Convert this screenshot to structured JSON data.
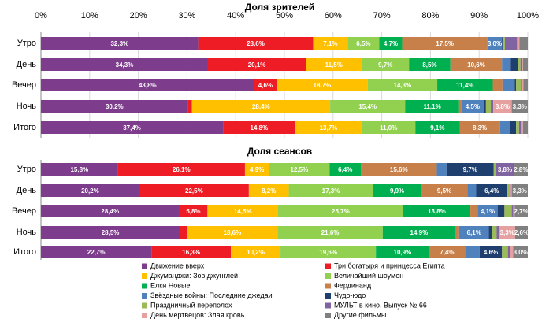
{
  "chart_data": [
    {
      "type": "stacked-bar-horizontal",
      "title": "Доля зрителей",
      "categories": [
        "Утро",
        "День",
        "Вечер",
        "Ночь",
        "Итого"
      ],
      "xlim": [
        0,
        100
      ],
      "xticks": [
        {
          "value": 0,
          "label": "0%"
        },
        {
          "value": 10,
          "label": "10%"
        },
        {
          "value": 20,
          "label": "20%"
        },
        {
          "value": 30,
          "label": "30%"
        },
        {
          "value": 40,
          "label": "40%"
        },
        {
          "value": 50,
          "label": "50%"
        },
        {
          "value": 60,
          "label": "60%"
        },
        {
          "value": 70,
          "label": "70%"
        },
        {
          "value": 80,
          "label": "80%"
        },
        {
          "value": 90,
          "label": "90%"
        },
        {
          "value": 100,
          "label": "100%"
        }
      ],
      "grid": true,
      "series": [
        {
          "name": "Движение вверх",
          "color": "#7d3c8c",
          "values": [
            32.3,
            34.3,
            43.8,
            30.2,
            37.4
          ],
          "value_labels": [
            "32,3%",
            "34,3%",
            "43,8%",
            "30,2%",
            "37,4%"
          ]
        },
        {
          "name": "Три богатыря и принцесса Египта",
          "color": "#ee1c25",
          "values": [
            23.6,
            20.1,
            4.6,
            0.8,
            14.8
          ],
          "value_labels": [
            "23,6%",
            "20,1%",
            "4,6%",
            null,
            "14,8%"
          ]
        },
        {
          "name": "Джуманджи: Зов джунглей",
          "color": "#ffc000",
          "values": [
            7.1,
            11.5,
            18.7,
            28.4,
            13.7
          ],
          "value_labels": [
            "7,1%",
            "11,5%",
            "18,7%",
            "28,4%",
            "13,7%"
          ]
        },
        {
          "name": "Величайший шоумен",
          "color": "#92d050",
          "values": [
            6.5,
            9.7,
            14.3,
            15.4,
            11.0
          ],
          "value_labels": [
            "6,5%",
            "9,7%",
            "14,3%",
            "15,4%",
            "11,0%"
          ]
        },
        {
          "name": "Елки Новые",
          "color": "#00b050",
          "values": [
            4.7,
            8.5,
            11.4,
            11.1,
            9.1
          ],
          "value_labels": [
            "4,7%",
            "8,5%",
            "11,4%",
            "11,1%",
            "9,1%"
          ]
        },
        {
          "name": "Фердинанд",
          "color": "#c8804a",
          "values": [
            17.5,
            10.6,
            2.0,
            0.5,
            8.3
          ],
          "value_labels": [
            "17,5%",
            "10,6%",
            null,
            null,
            "8,3%"
          ]
        },
        {
          "name": "Звёздные войны: Последние джедаи",
          "color": "#4f81bd",
          "values": [
            3.0,
            1.8,
            2.5,
            4.5,
            2.0
          ],
          "value_labels": [
            "3,0%",
            null,
            null,
            "4,5%",
            null
          ]
        },
        {
          "name": "Чудо-юдо",
          "color": "#1f3f6e",
          "values": [
            0.3,
            1.5,
            0.3,
            0.5,
            1.3
          ],
          "value_labels": [
            null,
            null,
            null,
            null,
            null
          ]
        },
        {
          "name": "Праздничный переполох",
          "color": "#9bbb59",
          "values": [
            0.3,
            0.5,
            1.0,
            1.0,
            0.6
          ],
          "value_labels": [
            null,
            null,
            null,
            null,
            null
          ]
        },
        {
          "name": "МУЛЬТ в кино. Выпуск № 66",
          "color": "#8064a2",
          "values": [
            2.5,
            0.3,
            0.2,
            0.5,
            0.4
          ],
          "value_labels": [
            null,
            null,
            null,
            null,
            null
          ]
        },
        {
          "name": "День мертвецов: Злая кровь",
          "color": "#e6a0a0",
          "values": [
            0.5,
            0.2,
            0.3,
            3.8,
            0.4
          ],
          "value_labels": [
            null,
            null,
            null,
            "3,8%",
            null
          ]
        },
        {
          "name": "Другие фильмы",
          "color": "#808080",
          "values": [
            1.7,
            1.0,
            0.9,
            3.3,
            1.0
          ],
          "value_labels": [
            null,
            null,
            null,
            "3,3%",
            null
          ]
        }
      ]
    },
    {
      "type": "stacked-bar-horizontal",
      "title": "Доля сеансов",
      "categories": [
        "Утро",
        "День",
        "Вечер",
        "Ночь",
        "Итого"
      ],
      "xlim": [
        0,
        100
      ],
      "series": [
        {
          "color": "#7d3c8c",
          "values": [
            15.8,
            20.2,
            28.4,
            28.5,
            22.7
          ],
          "value_labels": [
            "15,8%",
            "20,2%",
            "28,4%",
            "28,5%",
            "22,7%"
          ]
        },
        {
          "color": "#ee1c25",
          "values": [
            26.1,
            22.5,
            5.8,
            1.5,
            16.3
          ],
          "value_labels": [
            "26,1%",
            "22,5%",
            "5,8%",
            null,
            "16,3%"
          ]
        },
        {
          "color": "#ffc000",
          "values": [
            4.9,
            8.2,
            14.5,
            18.6,
            10.2
          ],
          "value_labels": [
            "4,9%",
            "8,2%",
            "14,5%",
            "18,6%",
            "10,2%"
          ]
        },
        {
          "color": "#92d050",
          "values": [
            12.5,
            17.3,
            25.7,
            21.6,
            19.6
          ],
          "value_labels": [
            "12,5%",
            "17,3%",
            "25,7%",
            "21,6%",
            "19,6%"
          ]
        },
        {
          "color": "#00b050",
          "values": [
            6.4,
            9.9,
            13.8,
            14.9,
            10.9
          ],
          "value_labels": [
            "6,4%",
            "9,9%",
            "13,8%",
            "14,9%",
            "10,9%"
          ]
        },
        {
          "color": "#c8804a",
          "values": [
            15.6,
            9.5,
            1.5,
            0.8,
            7.4
          ],
          "value_labels": [
            "15,6%",
            "9,5%",
            null,
            null,
            "7,4%"
          ]
        },
        {
          "color": "#4f81bd",
          "values": [
            2.0,
            1.8,
            4.1,
            6.1,
            3.0
          ],
          "value_labels": [
            null,
            null,
            "4,1%",
            "6,1%",
            null
          ]
        },
        {
          "color": "#1f3f6e",
          "values": [
            9.7,
            6.4,
            1.4,
            0.6,
            4.6
          ],
          "value_labels": [
            "9,7%",
            "6,4%",
            null,
            null,
            "4,6%"
          ]
        },
        {
          "color": "#9bbb59",
          "values": [
            0.4,
            0.5,
            1.5,
            1.0,
            1.2
          ],
          "value_labels": [
            null,
            null,
            null,
            null,
            null
          ]
        },
        {
          "color": "#8064a2",
          "values": [
            3.8,
            0.2,
            0.3,
            0.5,
            0.5
          ],
          "value_labels": [
            "3,8%",
            null,
            null,
            null,
            null
          ]
        },
        {
          "color": "#e6a0a0",
          "values": [
            0,
            0.2,
            0.3,
            3.3,
            0.6
          ],
          "value_labels": [
            null,
            null,
            null,
            "3,3%",
            null
          ]
        },
        {
          "color": "#808080",
          "values": [
            2.8,
            3.3,
            2.7,
            2.6,
            3.0
          ],
          "value_labels": [
            "2,8%",
            "3,3%",
            "2,7%",
            "2,6%",
            "3,0%"
          ]
        }
      ]
    }
  ]
}
